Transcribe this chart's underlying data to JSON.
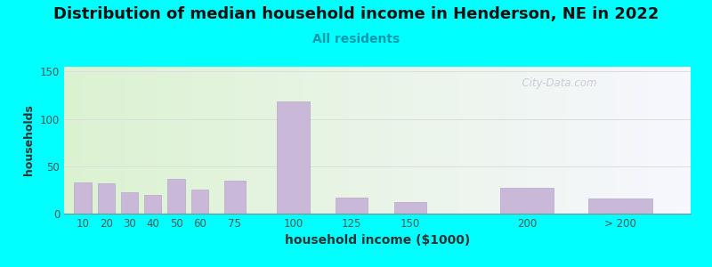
{
  "title": "Distribution of median household income in Henderson, NE in 2022",
  "subtitle": "All residents",
  "xlabel": "household income ($1000)",
  "ylabel": "households",
  "background_color": "#00FFFF",
  "bar_color": "#c9b8d8",
  "bar_edgecolor": "#b8a8c8",
  "title_fontsize": 13,
  "subtitle_fontsize": 10,
  "xlabel_fontsize": 10,
  "ylabel_fontsize": 9,
  "ylim": [
    0,
    155
  ],
  "yticks": [
    0,
    50,
    100,
    150
  ],
  "x_positions": [
    10,
    20,
    30,
    40,
    50,
    60,
    75,
    100,
    125,
    150,
    200,
    240
  ],
  "bar_widths": [
    8,
    8,
    8,
    8,
    8,
    8,
    10,
    15,
    15,
    15,
    25,
    30
  ],
  "labels": [
    "10",
    "20",
    "30",
    "40",
    "50",
    "60",
    "75",
    "100",
    "125",
    "150",
    "200",
    "> 200"
  ],
  "values": [
    33,
    32,
    23,
    20,
    37,
    25,
    35,
    118,
    17,
    12,
    27,
    16
  ],
  "xlim": [
    2,
    270
  ],
  "xtick_positions": [
    10,
    20,
    30,
    40,
    50,
    60,
    75,
    100,
    125,
    150,
    200,
    240
  ],
  "watermark": "  City-Data.com",
  "grid_color": "#dddddd",
  "tick_color": "#555555"
}
